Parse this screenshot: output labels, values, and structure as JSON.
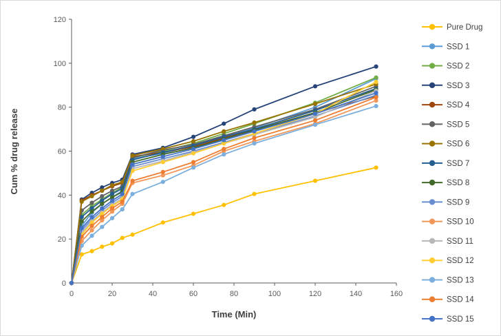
{
  "chart_data": {
    "type": "line",
    "title": "",
    "xlabel": "Time (Min)",
    "ylabel": "Cum % drug release",
    "grid": false,
    "legend_position": "right",
    "xlim": [
      0,
      160
    ],
    "ylim": [
      0,
      120
    ],
    "x_ticks": [
      0,
      20,
      40,
      60,
      80,
      100,
      120,
      140,
      160
    ],
    "y_ticks": [
      0,
      20,
      40,
      60,
      80,
      100,
      120
    ],
    "x": [
      0,
      5,
      10,
      15,
      20,
      25,
      30,
      45,
      60,
      75,
      90,
      120,
      150
    ],
    "series": [
      {
        "name": "Pure Drug",
        "color": "#FFC000",
        "values": [
          0,
          13,
          14.5,
          16.5,
          18,
          20.5,
          22,
          27.5,
          31.5,
          35.5,
          40.5,
          46.5,
          52.5
        ]
      },
      {
        "name": "SSD 1",
        "color": "#5B9BD5",
        "values": [
          0,
          26,
          32,
          36,
          39,
          42,
          56.5,
          59,
          62.5,
          66.5,
          70.5,
          80,
          93
        ]
      },
      {
        "name": "SSD 2",
        "color": "#70AD47",
        "values": [
          0,
          31,
          35,
          38,
          41,
          43.5,
          57,
          60,
          63.5,
          68,
          72.5,
          82,
          93.5
        ]
      },
      {
        "name": "SSD 3",
        "color": "#264478",
        "values": [
          0,
          38,
          41,
          43.5,
          45.5,
          47,
          58.5,
          61.5,
          66.5,
          72.5,
          79,
          89.5,
          98.5
        ]
      },
      {
        "name": "SSD 4",
        "color": "#9E480E",
        "values": [
          0,
          37.5,
          40,
          42,
          44,
          45.5,
          57.5,
          59.5,
          62,
          66,
          69.5,
          77.5,
          85
        ]
      },
      {
        "name": "SSD 5",
        "color": "#636363",
        "values": [
          0,
          33,
          36.5,
          39.5,
          42,
          44,
          57,
          60.5,
          63,
          67,
          71,
          79,
          89.5
        ]
      },
      {
        "name": "SSD 6",
        "color": "#997300",
        "values": [
          0,
          37,
          39.5,
          42,
          44.5,
          46,
          58,
          61,
          64.5,
          69,
          73,
          81.5,
          90.5
        ]
      },
      {
        "name": "SSD 7",
        "color": "#255E91",
        "values": [
          0,
          30,
          34,
          37.5,
          40.5,
          43,
          56,
          59.5,
          62.5,
          66.5,
          70,
          78.5,
          88.5
        ]
      },
      {
        "name": "SSD 8",
        "color": "#43682B",
        "values": [
          0,
          28,
          32.5,
          36,
          39,
          41.5,
          55,
          58.5,
          61.5,
          65.5,
          69.5,
          77.5,
          88
        ]
      },
      {
        "name": "SSD 9",
        "color": "#698ED0",
        "values": [
          0,
          24,
          29,
          33,
          36.5,
          39.5,
          53,
          56.5,
          60,
          64,
          68,
          76,
          85.5
        ]
      },
      {
        "name": "SSD 10",
        "color": "#F1975A",
        "values": [
          0,
          19,
          24,
          28.5,
          32.5,
          36,
          45.5,
          49,
          53.5,
          60,
          64.5,
          72.5,
          83
        ]
      },
      {
        "name": "SSD 11",
        "color": "#B7B7B7",
        "values": [
          0,
          23,
          28,
          32,
          35.5,
          38.5,
          52,
          55.5,
          59.5,
          63.5,
          67.5,
          75.5,
          87.5
        ]
      },
      {
        "name": "SSD 12",
        "color": "#FFCD33",
        "values": [
          0,
          22,
          27.5,
          31.5,
          35,
          38,
          51,
          55,
          59,
          63.5,
          68,
          77,
          91.5
        ]
      },
      {
        "name": "SSD 13",
        "color": "#7CAFDD",
        "values": [
          0,
          17,
          21.5,
          25.5,
          29.5,
          33.5,
          40.5,
          46,
          52.5,
          58.5,
          63.5,
          72,
          80.5
        ]
      },
      {
        "name": "SSD 14",
        "color": "#ED7D31",
        "values": [
          0,
          21,
          26,
          30,
          34,
          37,
          46.5,
          50.5,
          55,
          61,
          66,
          74,
          84.5
        ]
      },
      {
        "name": "SSD 15",
        "color": "#4472C4",
        "values": [
          0,
          25,
          30,
          34,
          37.5,
          40.5,
          54,
          57.5,
          61,
          65,
          69,
          77,
          86.5
        ]
      }
    ]
  }
}
